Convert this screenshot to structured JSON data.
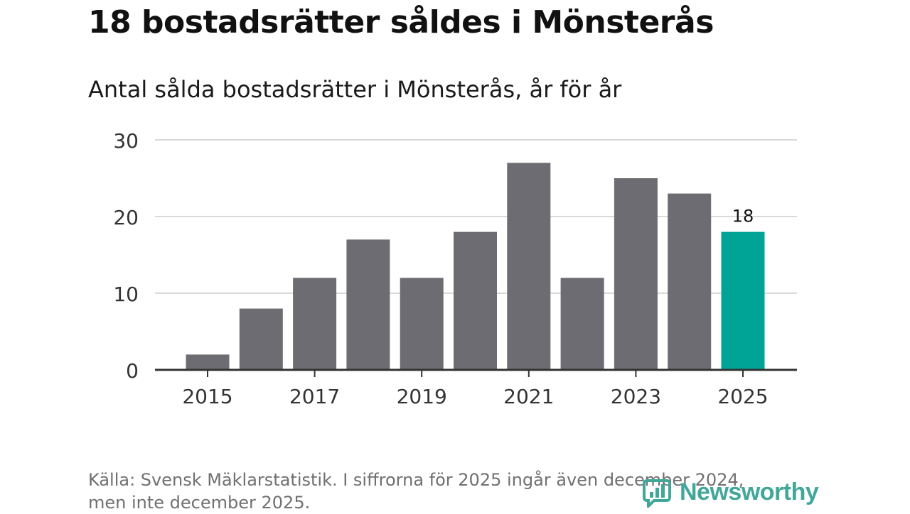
{
  "title": "18 bostadsrätter såldes i Mönsterås",
  "subtitle": "Antal sålda bostadsrätter i Mönsterås, år för år",
  "source_line1": "Källa: Svensk Mäklarstatistik. I siffrorna för 2025 ingår även december 2024,",
  "source_line2": "men inte december 2025.",
  "logo_text": "Newsworthy",
  "colors": {
    "bar": "#6d6c72",
    "highlight": "#00a497",
    "grid": "#d9d9d9",
    "axis": "#333333",
    "logo": "#40a79a"
  },
  "chart_data": {
    "type": "bar",
    "title": "18 bostadsrätter såldes i Mönsterås",
    "subtitle": "Antal sålda bostadsrätter i Mönsterås, år för år",
    "xlabel": "",
    "ylabel": "",
    "categories": [
      "2015",
      "2016",
      "2017",
      "2018",
      "2019",
      "2020",
      "2021",
      "2022",
      "2023",
      "2024",
      "2025"
    ],
    "values": [
      2,
      8,
      12,
      17,
      12,
      18,
      27,
      12,
      25,
      23,
      18
    ],
    "highlight_index": 10,
    "data_labels": [
      {
        "index": 10,
        "text": "18"
      }
    ],
    "ylim": [
      0,
      30
    ],
    "yticks": [
      0,
      10,
      20,
      30
    ],
    "xtick_labels": [
      "2015",
      "2017",
      "2019",
      "2021",
      "2023",
      "2025"
    ],
    "grid": true
  }
}
